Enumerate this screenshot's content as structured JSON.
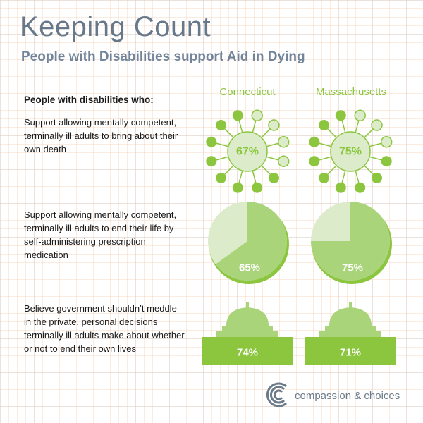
{
  "header": {
    "title": "Keeping Count",
    "subtitle": "People with Disabilities support Aid in Dying"
  },
  "intro_label": "People with disabilities who:",
  "colors": {
    "green_dark": "#8cc63f",
    "green_light": "#dcebc9",
    "green_mid": "#a9d47a",
    "slate": "#6b7a8a"
  },
  "chart_data": {
    "type": "table",
    "columns": [
      "Connecticut",
      "Massachusetts"
    ],
    "rows": [
      {
        "label": "Support allowing mentally competent, terminally ill adults to bring about their own death",
        "visual": "dot-circle",
        "values": [
          67,
          75
        ],
        "value_labels": [
          "67%",
          "75%"
        ]
      },
      {
        "label": "Support allowing mentally competent, terminally ill adults to end their life by self-administering prescription medication",
        "visual": "pie",
        "values": [
          65,
          75
        ],
        "value_labels": [
          "65%",
          "75%"
        ]
      },
      {
        "label": "Believe government shouldn’t meddle in the private, personal decisions terminally ill adults make about whether or not to end their own lives",
        "visual": "capitol",
        "values": [
          74,
          71
        ],
        "value_labels": [
          "74%",
          "71%"
        ]
      }
    ]
  },
  "logo": {
    "text": "compassion & choices",
    "icon": "concentric-arcs-icon"
  }
}
